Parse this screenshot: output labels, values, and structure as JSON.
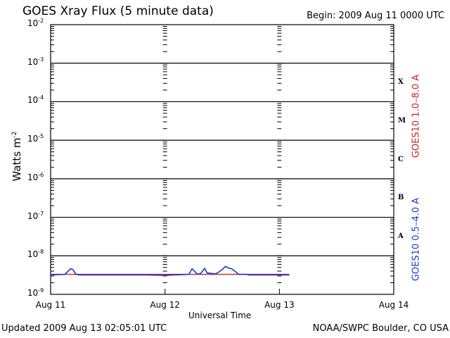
{
  "title": "GOES Xray Flux (5 minute data)",
  "begin": "Begin:  2009 Aug 11 0000 UTC",
  "footer": {
    "updated": "Updated 2009 Aug 13 02:05:01 UTC",
    "credit": "NOAA/SWPC Boulder, CO USA"
  },
  "colors": {
    "long_series": "#cc2222",
    "short_series": "#1a3ccc",
    "grid": "#000000"
  },
  "chart_data": {
    "type": "line",
    "xlabel": "Universal Time",
    "ylabel": "Watts m",
    "ylabel_sup": "-2",
    "yscale": "log",
    "ylim": [
      1e-09,
      0.01
    ],
    "xlim": [
      "2009-08-11",
      "2009-08-14"
    ],
    "x_ticks": [
      "Aug 11",
      "Aug 12",
      "Aug 13",
      "Aug 14"
    ],
    "y_ticks": [
      {
        "base": "10",
        "exp": "-9"
      },
      {
        "base": "10",
        "exp": "-8"
      },
      {
        "base": "10",
        "exp": "-7"
      },
      {
        "base": "10",
        "exp": "-6"
      },
      {
        "base": "10",
        "exp": "-5"
      },
      {
        "base": "10",
        "exp": "-4"
      },
      {
        "base": "10",
        "exp": "-3"
      },
      {
        "base": "10",
        "exp": "-2"
      }
    ],
    "flare_classes": [
      {
        "label": "A",
        "flux": 1e-08
      },
      {
        "label": "B",
        "flux": 1e-07
      },
      {
        "label": "C",
        "flux": 1e-06
      },
      {
        "label": "M",
        "flux": 1e-05
      },
      {
        "label": "X",
        "flux": 0.0001
      }
    ],
    "grid": true,
    "series": [
      {
        "name": "GOES10 1.0–8.0 A",
        "x": [
          "2009-08-11T00:00",
          "2009-08-11T12:00",
          "2009-08-12T00:00",
          "2009-08-12T12:00",
          "2009-08-13T00:00",
          "2009-08-13T02:05"
        ],
        "values": [
          3.3e-09,
          3.3e-09,
          3.3e-09,
          3.3e-09,
          3.3e-09,
          3.3e-09
        ]
      },
      {
        "name": "GOES10 0.5–4.0 A",
        "x": [
          "2009-08-11T00:00",
          "2009-08-11T03:00",
          "2009-08-11T03:50",
          "2009-08-11T04:10",
          "2009-08-11T04:40",
          "2009-08-11T05:20",
          "2009-08-11T06:00",
          "2009-08-11T12:00",
          "2009-08-11T20:00",
          "2009-08-12T00:00",
          "2009-08-12T05:00",
          "2009-08-12T05:40",
          "2009-08-12T06:50",
          "2009-08-12T07:30",
          "2009-08-12T08:20",
          "2009-08-12T08:50",
          "2009-08-12T10:30",
          "2009-08-12T11:00",
          "2009-08-12T12:00",
          "2009-08-12T12:40",
          "2009-08-12T13:20",
          "2009-08-12T14:00",
          "2009-08-12T15:30",
          "2009-08-12T16:20",
          "2009-08-12T17:00",
          "2009-08-12T17:40",
          "2009-08-12T18:20",
          "2009-08-12T19:00",
          "2009-08-12T20:30",
          "2009-08-13T00:00",
          "2009-08-13T02:05"
        ],
        "values": [
          3.2e-09,
          3.3e-09,
          4.2e-09,
          4.6e-09,
          4.4e-09,
          3.3e-09,
          3.2e-09,
          3.2e-09,
          3.2e-09,
          3.1e-09,
          3.3e-09,
          4.6e-09,
          3.3e-09,
          3.5e-09,
          4.7e-09,
          3.6e-09,
          3.4e-09,
          3.6e-09,
          4.4e-09,
          5.3e-09,
          4.8e-09,
          4.6e-09,
          3.3e-09,
          3.3e-09,
          3.3e-09,
          3.2e-09,
          3.2e-09,
          3.2e-09,
          3.2e-09,
          3.2e-09,
          3.2e-09
        ]
      }
    ]
  }
}
